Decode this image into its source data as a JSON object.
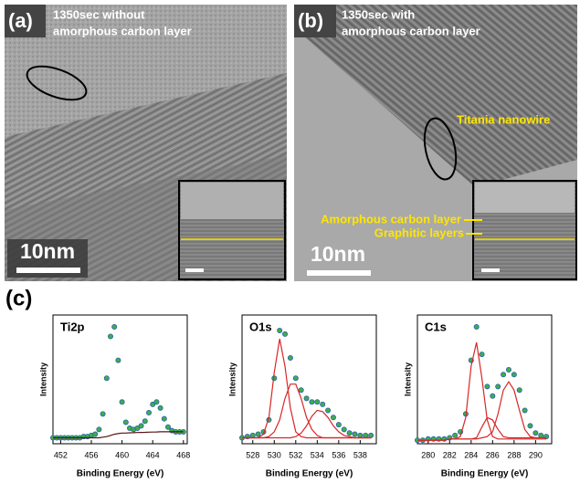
{
  "panels": [
    {
      "label": "(a)",
      "caption": [
        "1350sec without",
        "amorphous carbon layer"
      ],
      "scale_bar": "10nm"
    },
    {
      "label": "(b)",
      "caption": [
        "1350sec with",
        "amorphous carbon  layer"
      ],
      "scale_bar": "10nm",
      "annotations": [
        "Titania nanowire",
        "Amorphous carbon layer",
        "Graphitic layers"
      ]
    }
  ],
  "panel_c_label": "(c)",
  "chart_data": [
    {
      "type": "line",
      "title": "Ti2p",
      "x_label": "Binding Energy (eV)",
      "y_label": "Intensity",
      "x": [
        451,
        451.5,
        452,
        452.5,
        453,
        453.5,
        454,
        454.5,
        455,
        455.5,
        456,
        456.5,
        457,
        457.5,
        458,
        458.5,
        459,
        459.5,
        460,
        460.5,
        461,
        461.5,
        462,
        462.5,
        463,
        463.5,
        464,
        464.5,
        465,
        465.5,
        466,
        466.5,
        467,
        467.5,
        468
      ],
      "xlim": [
        451,
        468.5
      ],
      "xticks": [
        452,
        456,
        460,
        464,
        468
      ],
      "ylim": [
        0,
        108
      ],
      "series": [
        {
          "kind": "points",
          "color": "#3cb043",
          "values": [
            5,
            5,
            5,
            5,
            5,
            5,
            5,
            5,
            6,
            6,
            7,
            8,
            12,
            25,
            55,
            90,
            98,
            70,
            35,
            18,
            13,
            12,
            13,
            15,
            19,
            26,
            33,
            35,
            30,
            21,
            14,
            11,
            10,
            10,
            10
          ]
        },
        {
          "kind": "line",
          "color": "#5a1010",
          "values": [
            5,
            5,
            5,
            5,
            5,
            5,
            5,
            5,
            5,
            5,
            5,
            5,
            5,
            5.5,
            6,
            7,
            8,
            8.5,
            9,
            9,
            9.2,
            9.3,
            9.4,
            9.5,
            9.6,
            9.7,
            9.8,
            9.9,
            10,
            10,
            10,
            10,
            10,
            10,
            10
          ]
        }
      ]
    },
    {
      "type": "line",
      "title": "O1s",
      "x_label": "Binding Energy (eV)",
      "y_label": "Intensity",
      "x": [
        527,
        527.5,
        528,
        528.5,
        529,
        529.5,
        530,
        530.5,
        531,
        531.5,
        532,
        532.5,
        533,
        533.5,
        534,
        534.5,
        535,
        535.5,
        536,
        536.5,
        537,
        537.5,
        538,
        538.5,
        539
      ],
      "xlim": [
        527,
        539.5
      ],
      "xticks": [
        528,
        530,
        532,
        534,
        536,
        538
      ],
      "ylim": [
        0,
        108
      ],
      "series": [
        {
          "kind": "points",
          "color": "#3cb043",
          "values": [
            5,
            6,
            7,
            8,
            10,
            20,
            55,
            95,
            92,
            72,
            55,
            45,
            38,
            35,
            35,
            33,
            28,
            22,
            16,
            12,
            9,
            8,
            7,
            7,
            7
          ]
        },
        {
          "kind": "line",
          "color": "#d62728",
          "values": [
            5,
            5,
            5,
            5,
            8,
            22,
            60,
            88,
            65,
            30,
            10,
            6,
            5,
            5,
            5,
            5,
            5,
            5,
            5,
            5,
            5,
            5,
            5,
            5,
            5
          ]
        },
        {
          "kind": "line",
          "color": "#d62728",
          "values": [
            5,
            5,
            5,
            5,
            5,
            6,
            10,
            20,
            38,
            50,
            50,
            38,
            22,
            12,
            7,
            5,
            5,
            5,
            5,
            5,
            5,
            5,
            5,
            5,
            5
          ]
        },
        {
          "kind": "line",
          "color": "#d62728",
          "values": [
            5,
            5,
            5,
            5,
            5,
            5,
            5,
            5,
            5,
            5,
            6,
            9,
            15,
            23,
            28,
            27,
            22,
            15,
            10,
            7,
            6,
            5,
            5,
            5,
            5
          ]
        }
      ]
    },
    {
      "type": "line",
      "title": "C1s",
      "x_label": "Binding Energy (eV)",
      "y_label": "Intensity",
      "x": [
        279,
        279.5,
        280,
        280.5,
        281,
        281.5,
        282,
        282.5,
        283,
        283.5,
        284,
        284.5,
        285,
        285.5,
        286,
        286.5,
        287,
        287.5,
        288,
        288.5,
        289,
        289.5,
        290,
        290.5,
        291
      ],
      "xlim": [
        279,
        291.5
      ],
      "xticks": [
        280,
        282,
        284,
        286,
        288,
        290
      ],
      "ylim": [
        0,
        108
      ],
      "series": [
        {
          "kind": "points",
          "color": "#3cb043",
          "values": [
            3,
            3,
            4,
            4,
            4,
            4,
            5,
            7,
            10,
            25,
            70,
            98,
            75,
            48,
            40,
            48,
            58,
            62,
            58,
            45,
            28,
            15,
            9,
            7,
            6
          ]
        },
        {
          "kind": "line",
          "color": "#d62728",
          "values": [
            3,
            3,
            3,
            3,
            3,
            3,
            4,
            4,
            6,
            22,
            65,
            85,
            55,
            20,
            6,
            4,
            4,
            4,
            4,
            4,
            4,
            4,
            4,
            4,
            4
          ]
        },
        {
          "kind": "line",
          "color": "#d62728",
          "values": [
            3,
            3,
            3,
            3,
            3,
            3,
            4,
            4,
            4,
            4,
            4,
            5,
            14,
            22,
            20,
            12,
            6,
            5,
            5,
            5,
            5,
            5,
            5,
            5,
            5
          ]
        },
        {
          "kind": "line",
          "color": "#d62728",
          "values": [
            3,
            3,
            3,
            3,
            3,
            3,
            4,
            4,
            4,
            4,
            4,
            4,
            5,
            6,
            10,
            25,
            45,
            52,
            45,
            28,
            12,
            6,
            5,
            5,
            5
          ]
        }
      ]
    }
  ]
}
